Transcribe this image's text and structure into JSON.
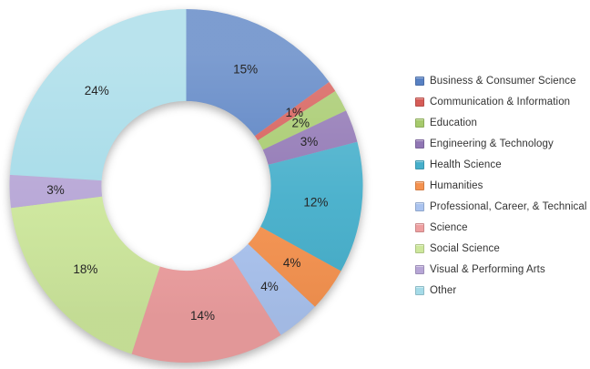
{
  "figure": {
    "background_color": "#ffffff",
    "label_color": "#262626",
    "legend_text_color": "#333333"
  },
  "chart_data": {
    "type": "pie",
    "subtype": "donut",
    "title": "",
    "start_angle_deg": 0,
    "direction": "clockwise",
    "inner_radius_ratio": 0.48,
    "legend_position": "right",
    "categories": [
      "Business & Consumer Science",
      "Communication & Information",
      "Education",
      "Engineering & Technology",
      "Health Science",
      "Humanities",
      "Professional, Career, & Technical",
      "Science",
      "Social Science",
      "Visual & Performing Arts",
      "Other"
    ],
    "values": [
      15,
      1,
      2,
      3,
      12,
      4,
      4,
      14,
      18,
      3,
      24
    ],
    "slice_labels": [
      "15%",
      "1%",
      "2%",
      "3%",
      "12%",
      "4%",
      "4%",
      "14%",
      "18%",
      "3%",
      "24%"
    ],
    "colors": [
      "#5881C3",
      "#D65C57",
      "#A6CA6C",
      "#9076B4",
      "#46AFCB",
      "#F5924F",
      "#AAC3EF",
      "#EE9FA0",
      "#CDE79C",
      "#B7A6D6",
      "#A5DBE8"
    ]
  }
}
